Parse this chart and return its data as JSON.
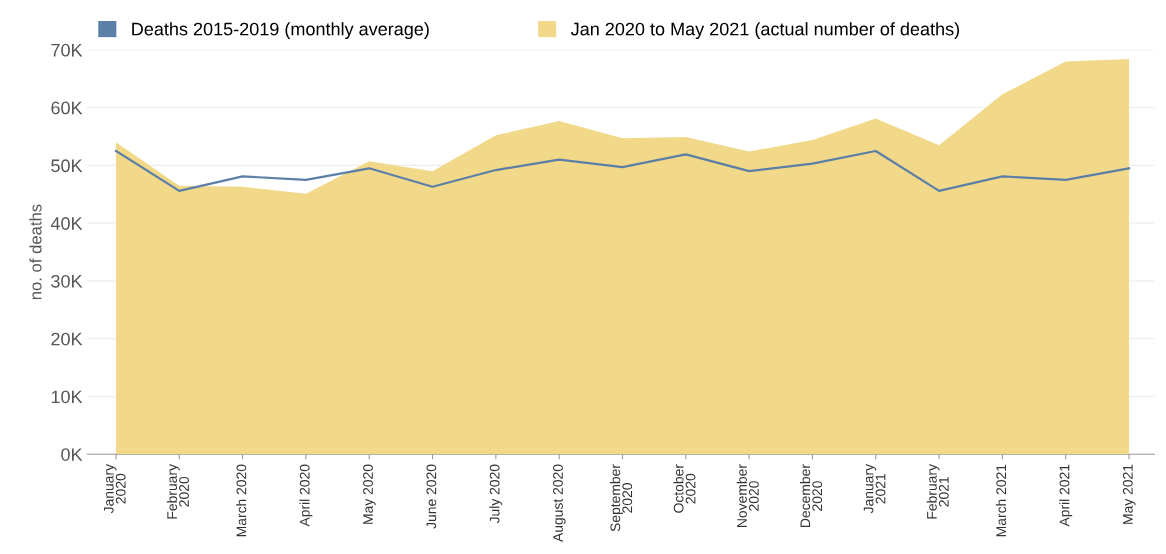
{
  "chart_data": {
    "type": "area",
    "ylabel": "no. of deaths",
    "categories": [
      "January\n2020",
      "February\n2020",
      "March 2020",
      "April 2020",
      "May 2020",
      "June 2020",
      "July 2020",
      "August 2020",
      "September\n2020",
      "October\n2020",
      "November\n2020",
      "December\n2020",
      "January\n2021",
      "February\n2021",
      "March 2021",
      "April 2021",
      "May 2021"
    ],
    "series": [
      {
        "name": "Deaths 2015-2019 (monthly average)",
        "type": "line",
        "color": "#5b7fa6",
        "values": [
          52.5,
          45.6,
          48.1,
          47.5,
          49.5,
          46.3,
          49.2,
          51.0,
          49.7,
          51.9,
          49.0,
          50.3,
          52.5,
          45.6,
          48.1,
          47.5,
          49.5
        ]
      },
      {
        "name": "Jan 2020 to May 2021 (actual number of deaths)",
        "color": "#f2d98a",
        "values": [
          54.0,
          46.5,
          46.3,
          45.1,
          50.7,
          49.0,
          55.2,
          57.7,
          54.7,
          54.9,
          52.4,
          54.4,
          58.1,
          53.5,
          62.3,
          68.0,
          68.4
        ]
      }
    ],
    "ylim": [
      0,
      70
    ],
    "yticks": [
      {
        "value": 0,
        "label": "0K"
      },
      {
        "value": 10,
        "label": "10K"
      },
      {
        "value": 20,
        "label": "20K"
      },
      {
        "value": 30,
        "label": "30K"
      },
      {
        "value": 40,
        "label": "40K"
      },
      {
        "value": 50,
        "label": "50K"
      },
      {
        "value": 60,
        "label": "60K"
      },
      {
        "value": 70,
        "label": "70K"
      }
    ],
    "grid": "y",
    "legend": "top"
  }
}
